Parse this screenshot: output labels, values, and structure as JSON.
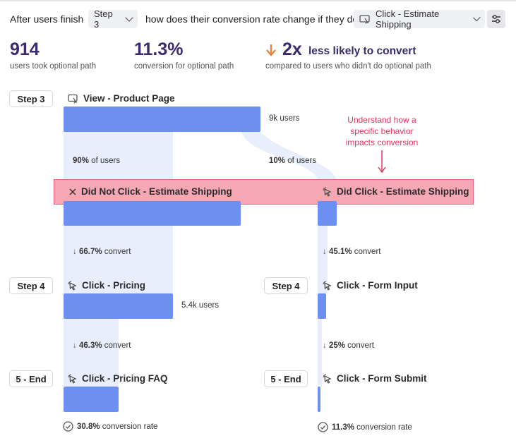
{
  "header": {
    "prefix": "After users finish",
    "step_select": "Step 3",
    "question": "how does their conversion rate change if they do",
    "event_select": "Click - Estimate Shipping"
  },
  "stats": {
    "users": {
      "value": "914",
      "label": "users took optional path"
    },
    "conversion": {
      "value": "11.3%",
      "label": "conversion for optional path"
    },
    "likely": {
      "value": "2x",
      "text": "less likely to convert",
      "label": "compared to users who didn't do optional path"
    }
  },
  "colors": {
    "bar": "#6e8ff2",
    "flow": "#e9eefc",
    "accent": "#3b2a6e",
    "arrow": "#e8833a",
    "annotation": "#e0385d"
  },
  "steps": {
    "step3": {
      "label": "Step 3",
      "event": "View - Product Page",
      "users": "9k users"
    },
    "split": {
      "left_pct": "90%",
      "left_suffix": " of users",
      "right_pct": "10%",
      "right_suffix": " of users",
      "left_event_a": "Did ",
      "left_event_b": "Not",
      "left_event_c": " Click - Estimate Shipping",
      "right_event": "Did Click - Estimate Shipping"
    },
    "annotation": "Understand how a specific behavior impacts conversion",
    "step4": {
      "label": "Step 4",
      "left_convert_pct": "66.7%",
      "left_convert_suffix": " convert",
      "right_convert_pct": "45.1%",
      "right_convert_suffix": " convert",
      "left_event": "Click - Pricing",
      "left_users": "5.4k users",
      "right_event": "Click - Form Input"
    },
    "end": {
      "label": "5 - End",
      "left_convert_pct": "46.3%",
      "left_convert_suffix": " convert",
      "right_convert_pct": "25%",
      "right_convert_suffix": " convert",
      "left_event": "Click - Pricing FAQ",
      "right_event": "Click - Form Submit",
      "left_rate_pct": "30.8%",
      "left_rate_suffix": " conversion rate",
      "right_rate_pct": "11.3%",
      "right_rate_suffix": " conversion rate"
    }
  }
}
